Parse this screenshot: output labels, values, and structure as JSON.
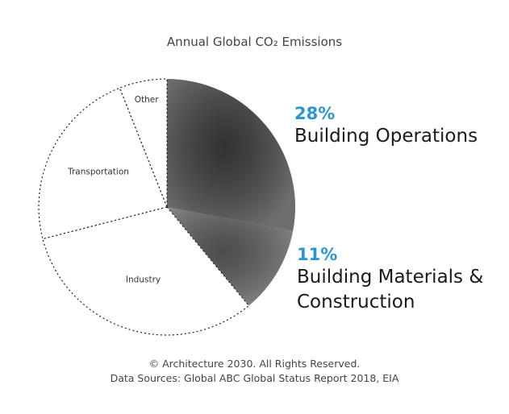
{
  "chart_data": {
    "type": "pie",
    "title": "Annual Global CO₂ Emissions",
    "categories": [
      "Building Operations",
      "Building Materials & Construction",
      "Industry",
      "Transportation",
      "Other"
    ],
    "values": [
      28,
      11,
      32,
      23,
      6
    ],
    "value_labels": [
      "28%",
      "11%",
      null,
      null,
      null
    ],
    "colors": [
      "#3c3c3c",
      "#5a5a5a",
      "#ffffff",
      "#ffffff",
      "#ffffff"
    ],
    "notes": [
      "© Architecture 2030. All Rights Reserved.",
      "Data Sources: Global ABC Global Status Report 2018, EIA"
    ]
  }
}
